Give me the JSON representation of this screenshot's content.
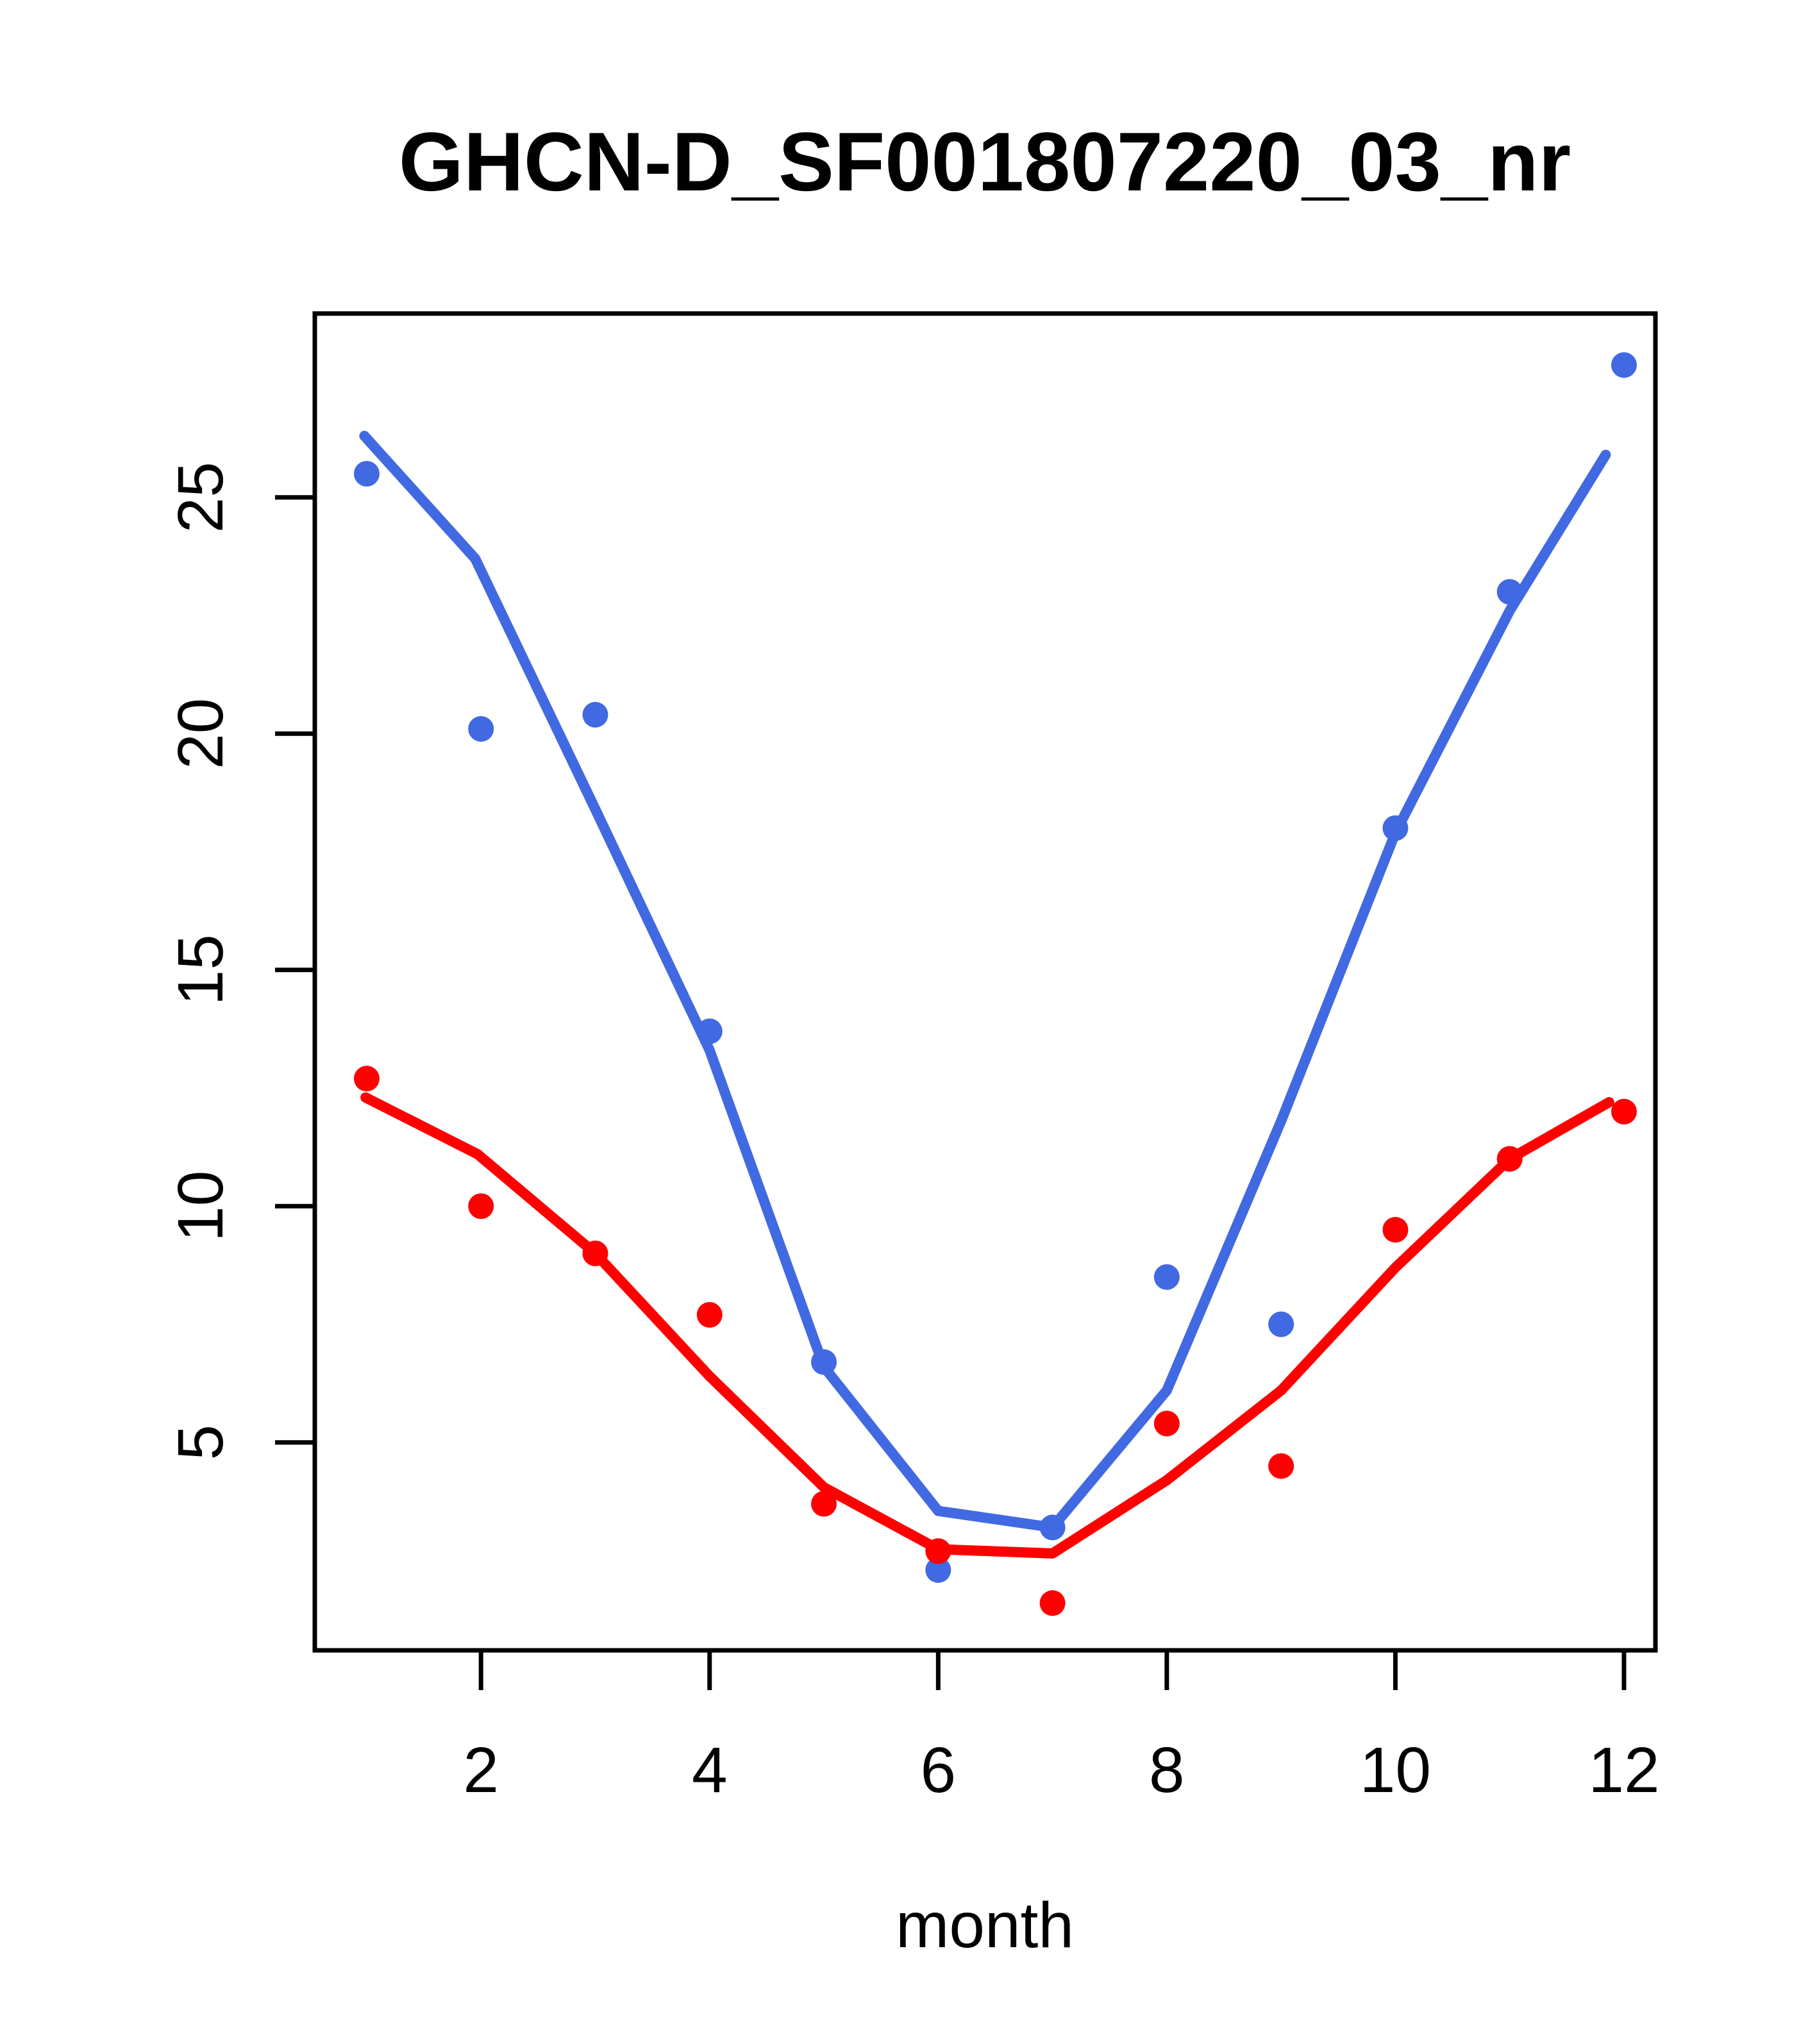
{
  "title": "GHCN-D_SF001807220_03_nr",
  "x_axis": {
    "label": "month",
    "tick_labels": [
      "2",
      "4",
      "6",
      "8",
      "10",
      "12"
    ],
    "tick_values": [
      2,
      4,
      6,
      8,
      10,
      12
    ]
  },
  "y_axis": {
    "label": "",
    "tick_labels": [
      "5",
      "10",
      "15",
      "20",
      "25"
    ],
    "tick_values": [
      5,
      10,
      15,
      20,
      25
    ]
  },
  "colors": {
    "series_high": "#4169E1",
    "series_low": "#FF0000",
    "axis": "#000000",
    "background": "#FFFFFF"
  },
  "chart_data": {
    "type": "scatter",
    "title": "GHCN-D_SF001807220_03_nr",
    "xlabel": "month",
    "ylabel": "",
    "xlim": [
      0.546,
      12.275
    ],
    "ylim": [
      0.6,
      28.89
    ],
    "grid": false,
    "legend": "none",
    "x": [
      1,
      2,
      3,
      4,
      5,
      6,
      7,
      8,
      9,
      10,
      11,
      12
    ],
    "series": [
      {
        "name": "blue-points",
        "type": "scatter",
        "color_key": "series_high",
        "values": [
          25.5,
          20.1,
          20.4,
          13.7,
          6.7,
          2.3,
          3.2,
          8.5,
          7.5,
          18.0,
          23.0,
          27.8
        ]
      },
      {
        "name": "red-points",
        "type": "scatter",
        "color_key": "series_low",
        "values": [
          12.7,
          10.0,
          9.0,
          7.7,
          3.7,
          2.7,
          1.6,
          5.4,
          4.5,
          9.5,
          11.0,
          12.0
        ]
      },
      {
        "name": "blue-smooth-line",
        "type": "line",
        "color_key": "series_high",
        "points": [
          [
            0.98,
            26.3
          ],
          [
            1.95,
            23.7
          ],
          [
            3,
            18.4
          ],
          [
            4,
            13.3
          ],
          [
            5,
            6.6
          ],
          [
            6,
            3.55
          ],
          [
            7,
            3.2
          ],
          [
            8,
            6.1
          ],
          [
            9,
            11.8
          ],
          [
            10,
            17.9
          ],
          [
            11,
            22.6
          ],
          [
            11.84,
            25.9
          ]
        ]
      },
      {
        "name": "red-smooth-line",
        "type": "line",
        "color_key": "series_low",
        "points": [
          [
            0.99,
            12.3
          ],
          [
            1.97,
            11.1
          ],
          [
            3,
            9.0
          ],
          [
            4,
            6.4
          ],
          [
            5,
            4.05
          ],
          [
            6,
            2.74
          ],
          [
            7,
            2.65
          ],
          [
            8,
            4.2
          ],
          [
            9,
            6.1
          ],
          [
            10,
            8.7
          ],
          [
            11,
            11.0
          ],
          [
            11.87,
            12.2
          ]
        ]
      }
    ]
  }
}
